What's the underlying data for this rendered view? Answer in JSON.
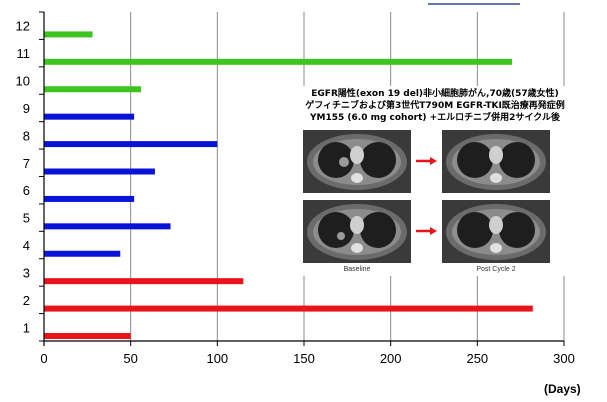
{
  "chart_data": {
    "type": "bar",
    "orientation": "horizontal",
    "categories": [
      "1",
      "2",
      "3",
      "4",
      "5",
      "6",
      "7",
      "8",
      "9",
      "10",
      "11",
      "12"
    ],
    "values": [
      50,
      282,
      115,
      44,
      73,
      52,
      64,
      100,
      52,
      56,
      270,
      28
    ],
    "bar_colors": [
      "#e8141c",
      "#e8141c",
      "#e8141c",
      "#0a14d8",
      "#0a14d8",
      "#0a14d8",
      "#0a14d8",
      "#0a14d8",
      "#0a14d8",
      "#3ec41e",
      "#3ec41e",
      "#3ec41e"
    ],
    "xlim": [
      0,
      300
    ],
    "xticks": [
      0,
      50,
      100,
      150,
      200,
      250,
      300
    ],
    "xlabel": "(Days)",
    "grid": "vertical",
    "inset": {
      "caption_lines": [
        "EGFR陽性(exon 19 del)非小細胞肺がん,70歳(57歳女性)",
        "ゲフィチニブおよび第3世代T790M EGFR-TKI既治療再発症例",
        "YM155 (6.0 mg cohort) +エルロチニブ併用2サイクル後"
      ],
      "scan_labels": [
        "Baseline",
        "Post Cycle 2"
      ],
      "arrow_color": "#e8141c"
    }
  }
}
